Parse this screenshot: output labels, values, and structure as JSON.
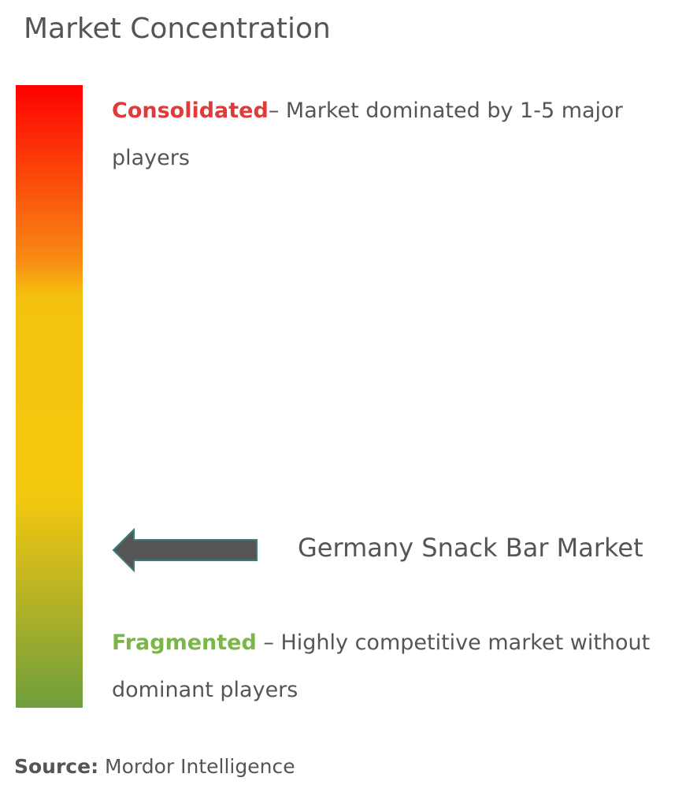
{
  "title": "Market Concentration",
  "consolidated": {
    "label": "Consolidated",
    "description": "– Market dominated by 1-5 major players"
  },
  "market": "Germany Snack Bar Market",
  "fragmented": {
    "label": "Fragmented",
    "description": " – Highly competitive market without dominant players"
  },
  "source": {
    "label": "Source:",
    "text": " Mordor Intelligence"
  }
}
